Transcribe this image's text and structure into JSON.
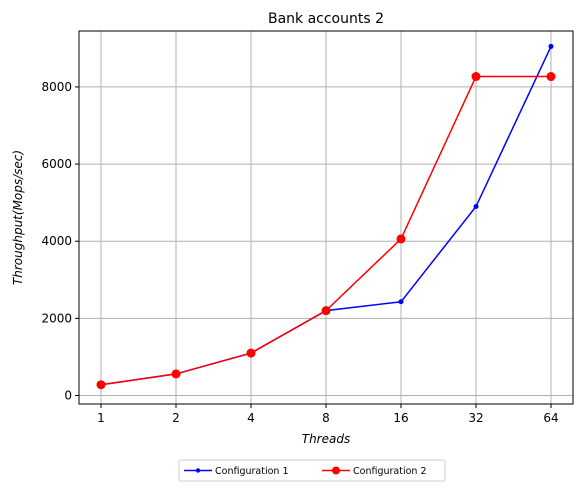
{
  "chart_data": {
    "type": "line",
    "title": "Bank accounts 2",
    "xlabel": "Threads",
    "ylabel": "Throughput(Mops/sec)",
    "categories": [
      "1",
      "2",
      "4",
      "8",
      "16",
      "32",
      "64"
    ],
    "ylim": [
      -220,
      9450
    ],
    "yticks": [
      0,
      2000,
      4000,
      6000,
      8000
    ],
    "grid": true,
    "legend_position": "bottom-center",
    "series": [
      {
        "name": "Configuration 1",
        "color": "#0000ff",
        "marker": "small-dot",
        "values": [
          280,
          560,
          1100,
          2200,
          2430,
          4900,
          9050
        ]
      },
      {
        "name": "Configuration 2",
        "color": "#ff0000",
        "marker": "large-dot",
        "values": [
          280,
          560,
          1100,
          2200,
          4060,
          8270,
          8270
        ]
      }
    ]
  }
}
